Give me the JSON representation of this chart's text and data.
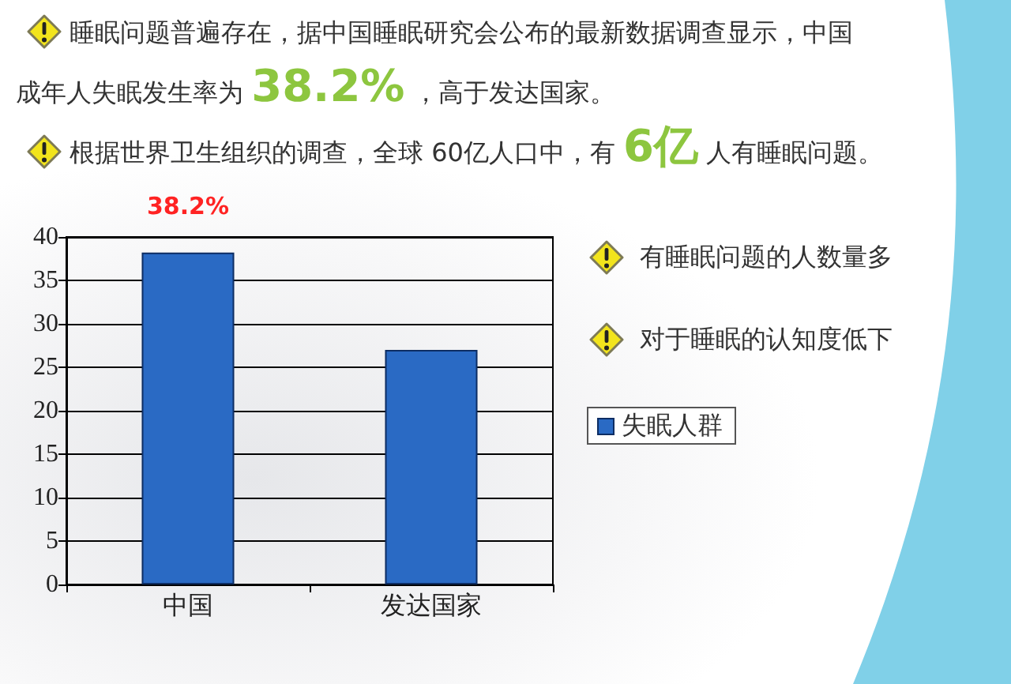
{
  "chart_data": {
    "type": "bar",
    "annotations": [
      "睡眠问题普遍存在，据中国睡眠研究会公布的最新数据调查显示，中国成年人失眠发生率为 38.2% ，高于发达国家。",
      "根据世界卫生组织的调查，全球 60亿人口中，有 6亿 人有睡眠问题。",
      "有睡眠问题的人数量多",
      "对于睡眠的认知度低下"
    ],
    "categories": [
      "中国",
      "发达国家"
    ],
    "series": [
      {
        "name": "失眠人群",
        "color": "#2a6ac4",
        "values": [
          38.2,
          27
        ],
        "value_labels": [
          "38.2%",
          null
        ]
      }
    ],
    "ylim": [
      0,
      40
    ],
    "yticks": [
      0,
      5,
      10,
      15,
      20,
      25,
      30,
      35,
      40
    ],
    "grid": "y",
    "legend": "right"
  }
}
